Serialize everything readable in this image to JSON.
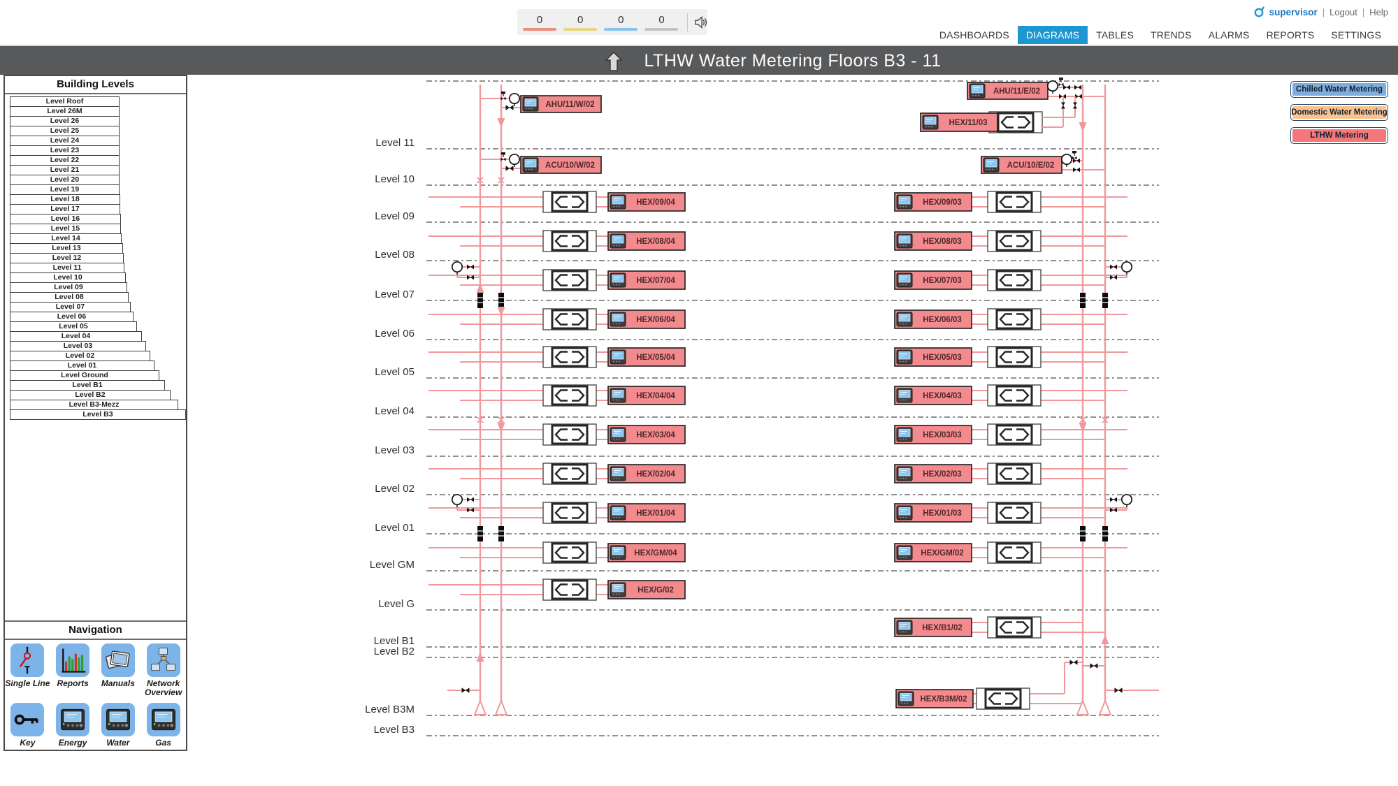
{
  "topbar": {
    "alarm_counts": [
      "0",
      "0",
      "0",
      "0"
    ],
    "alarm_colors": [
      "#e89080",
      "#e6d87e",
      "#8cc3ec",
      "#c2c2c2"
    ],
    "user": {
      "name": "supervisor",
      "sep": "|",
      "logout": "Logout",
      "help": "Help"
    },
    "menu": [
      {
        "label": "DASHBOARDS",
        "active": false
      },
      {
        "label": "DIAGRAMS",
        "active": true
      },
      {
        "label": "TABLES",
        "active": false
      },
      {
        "label": "TRENDS",
        "active": false
      },
      {
        "label": "ALARMS",
        "active": false
      },
      {
        "label": "REPORTS",
        "active": false
      },
      {
        "label": "SETTINGS",
        "active": false
      }
    ]
  },
  "title_bar": {
    "title": "LTHW Water Metering Floors B3 - 11"
  },
  "sidebar": {
    "levels_header": "Building Levels",
    "levels": [
      "Level Roof",
      "Level 26M",
      "Level 26",
      "Level 25",
      "Level 24",
      "Level 23",
      "Level 22",
      "Level 21",
      "Level 20",
      "Level 19",
      "Level 18",
      "Level 17",
      "Level 16",
      "Level 15",
      "Level 14",
      "Level 13",
      "Level 12",
      "Level 11",
      "Level 10",
      "Level 09",
      "Level 08",
      "Level 07",
      "Level 06",
      "Level 05",
      "Level 04",
      "Level 03",
      "Level 02",
      "Level 01",
      "Level Ground",
      "Level B1",
      "Level B2",
      "Level B3-Mezz",
      "Level B3"
    ],
    "nav_header": "Navigation",
    "nav_items": [
      {
        "label": "Single Line",
        "icon": "single-line-icon"
      },
      {
        "label": "Reports",
        "icon": "reports-icon"
      },
      {
        "label": "Manuals",
        "icon": "manuals-icon"
      },
      {
        "label": "Network Overview",
        "icon": "network-overview-icon"
      },
      {
        "label": "Key",
        "icon": "key-icon"
      },
      {
        "label": "Energy",
        "icon": "energy-meter-icon"
      },
      {
        "label": "Water",
        "icon": "water-meter-icon"
      },
      {
        "label": "Gas",
        "icon": "gas-meter-icon"
      }
    ]
  },
  "legend": [
    {
      "label": "Chilled Water Metering",
      "fill": "#7eaedd"
    },
    {
      "label": "Domestic Water Metering",
      "fill": "#fac28f"
    },
    {
      "label": "LTHW Metering",
      "fill": "#f4777c"
    }
  ],
  "diagram": {
    "floor_labels": [
      "Level 11",
      "Level 10",
      "Level 09",
      "Level 08",
      "Level 07",
      "Level 06",
      "Level 05",
      "Level 04",
      "Level 03",
      "Level 02",
      "Level 01",
      "Level GM",
      "Level G",
      "Level B1",
      "Level B2",
      "Level B3M",
      "Level B3"
    ],
    "hex_left": [
      "HEX/09/04",
      "HEX/08/04",
      "HEX/07/04",
      "HEX/06/04",
      "HEX/05/04",
      "HEX/04/04",
      "HEX/03/04",
      "HEX/02/04",
      "HEX/01/04",
      "HEX/GM/04",
      "HEX/G/02"
    ],
    "hex_right": [
      "HEX/09/03",
      "HEX/08/03",
      "HEX/07/03",
      "HEX/06/03",
      "HEX/05/03",
      "HEX/04/03",
      "HEX/03/03",
      "HEX/02/03",
      "HEX/01/03",
      "HEX/GM/02",
      "HEX/B1/02",
      "HEX/B3M/02"
    ],
    "top_units": {
      "ahu_west": "AHU/11/W/02",
      "acu_west": "ACU/10/W/02",
      "ahu_east": "AHU/11/E/02",
      "hex_11": "HEX/11/03",
      "acu_east": "ACU/10/E/02"
    }
  },
  "colors": {
    "accent_blue": "#1e96d2",
    "supervisor_blue": "#1878be",
    "pipe": "#f0989c",
    "unit_box": "#f28a8e",
    "titlebar": "#58595b"
  }
}
